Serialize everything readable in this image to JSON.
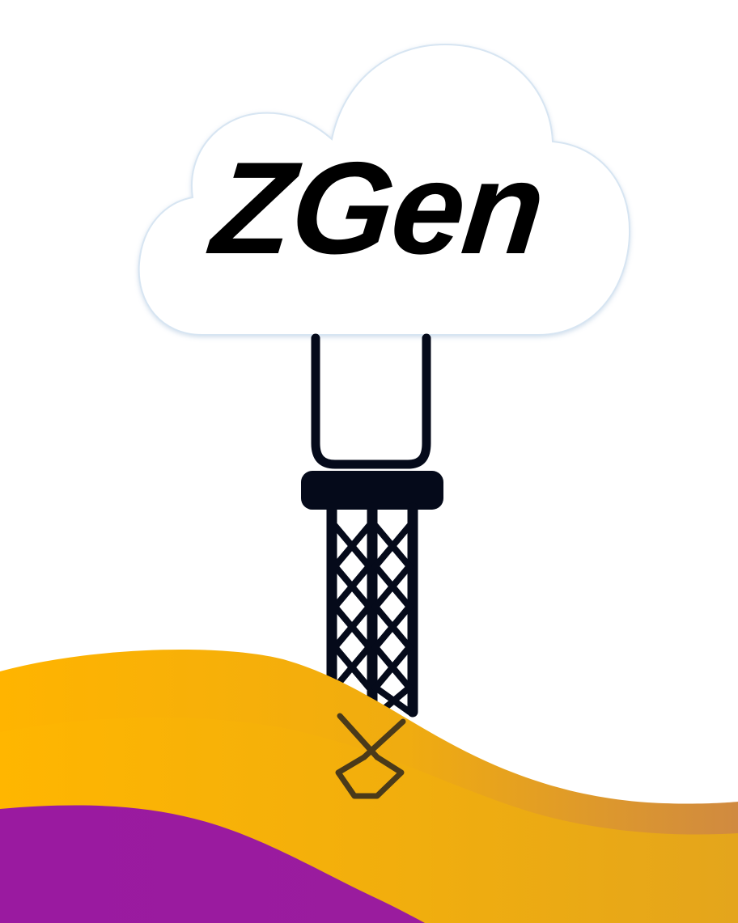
{
  "logo": {
    "text": "ZGen",
    "text_color": "#000000"
  },
  "illustration": {
    "cloud_color": "#ffffff",
    "cloud_outline_color": "#d7e5f2",
    "tower_color": "#050a1a",
    "wave_gold_start": "#ffb400",
    "wave_gold_end": "#d08a40",
    "wave_purple": "#9a1c9e",
    "anchor_color": "#4a3a1a"
  }
}
